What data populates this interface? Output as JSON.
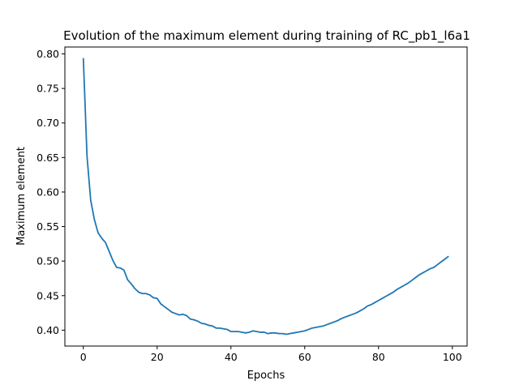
{
  "chart_data": {
    "type": "line",
    "title": "Evolution of the maximum element during training of RC_pb1_l6a1",
    "xlabel": "Epochs",
    "ylabel": "Maximum element",
    "xlim": [
      -5,
      104
    ],
    "ylim": [
      0.377,
      0.81
    ],
    "xticks": [
      0,
      20,
      40,
      60,
      80,
      100
    ],
    "yticks": [
      0.4,
      0.45,
      0.5,
      0.55,
      0.6,
      0.65,
      0.7,
      0.75,
      0.8
    ],
    "xtick_labels": [
      "0",
      "20",
      "40",
      "60",
      "80",
      "100"
    ],
    "ytick_labels": [
      "0.40",
      "0.45",
      "0.50",
      "0.55",
      "0.60",
      "0.65",
      "0.70",
      "0.75",
      "0.80"
    ],
    "grid": false,
    "series": [
      {
        "color": "#1f77b4",
        "x": [
          0,
          1,
          2,
          3,
          4,
          5,
          6,
          7,
          8,
          9,
          10,
          11,
          12,
          13,
          14,
          15,
          16,
          17,
          18,
          19,
          20,
          21,
          22,
          23,
          24,
          25,
          26,
          27,
          28,
          29,
          30,
          31,
          32,
          33,
          34,
          35,
          36,
          37,
          38,
          39,
          40,
          41,
          42,
          43,
          44,
          45,
          46,
          47,
          48,
          49,
          50,
          51,
          52,
          53,
          54,
          55,
          56,
          57,
          58,
          59,
          60,
          61,
          62,
          63,
          64,
          65,
          66,
          67,
          68,
          69,
          70,
          71,
          72,
          73,
          74,
          75,
          76,
          77,
          78,
          79,
          80,
          81,
          82,
          83,
          84,
          85,
          86,
          87,
          88,
          89,
          90,
          91,
          92,
          93,
          94,
          95,
          96,
          97,
          98,
          99
        ],
        "y": [
          0.794,
          0.652,
          0.588,
          0.56,
          0.541,
          0.533,
          0.527,
          0.514,
          0.501,
          0.491,
          0.49,
          0.487,
          0.473,
          0.467,
          0.46,
          0.455,
          0.453,
          0.453,
          0.451,
          0.447,
          0.446,
          0.438,
          0.434,
          0.43,
          0.426,
          0.424,
          0.422,
          0.423,
          0.421,
          0.416,
          0.415,
          0.413,
          0.41,
          0.409,
          0.407,
          0.406,
          0.403,
          0.403,
          0.402,
          0.401,
          0.398,
          0.398,
          0.398,
          0.397,
          0.396,
          0.397,
          0.399,
          0.398,
          0.397,
          0.397,
          0.395,
          0.396,
          0.396,
          0.395,
          0.395,
          0.394,
          0.395,
          0.396,
          0.397,
          0.398,
          0.399,
          0.401,
          0.403,
          0.404,
          0.405,
          0.406,
          0.408,
          0.41,
          0.412,
          0.414,
          0.417,
          0.419,
          0.421,
          0.423,
          0.425,
          0.428,
          0.431,
          0.435,
          0.437,
          0.44,
          0.443,
          0.446,
          0.449,
          0.452,
          0.455,
          0.459,
          0.462,
          0.465,
          0.468,
          0.472,
          0.476,
          0.48,
          0.483,
          0.486,
          0.489,
          0.491,
          0.495,
          0.499,
          0.503,
          0.507
        ]
      }
    ]
  }
}
